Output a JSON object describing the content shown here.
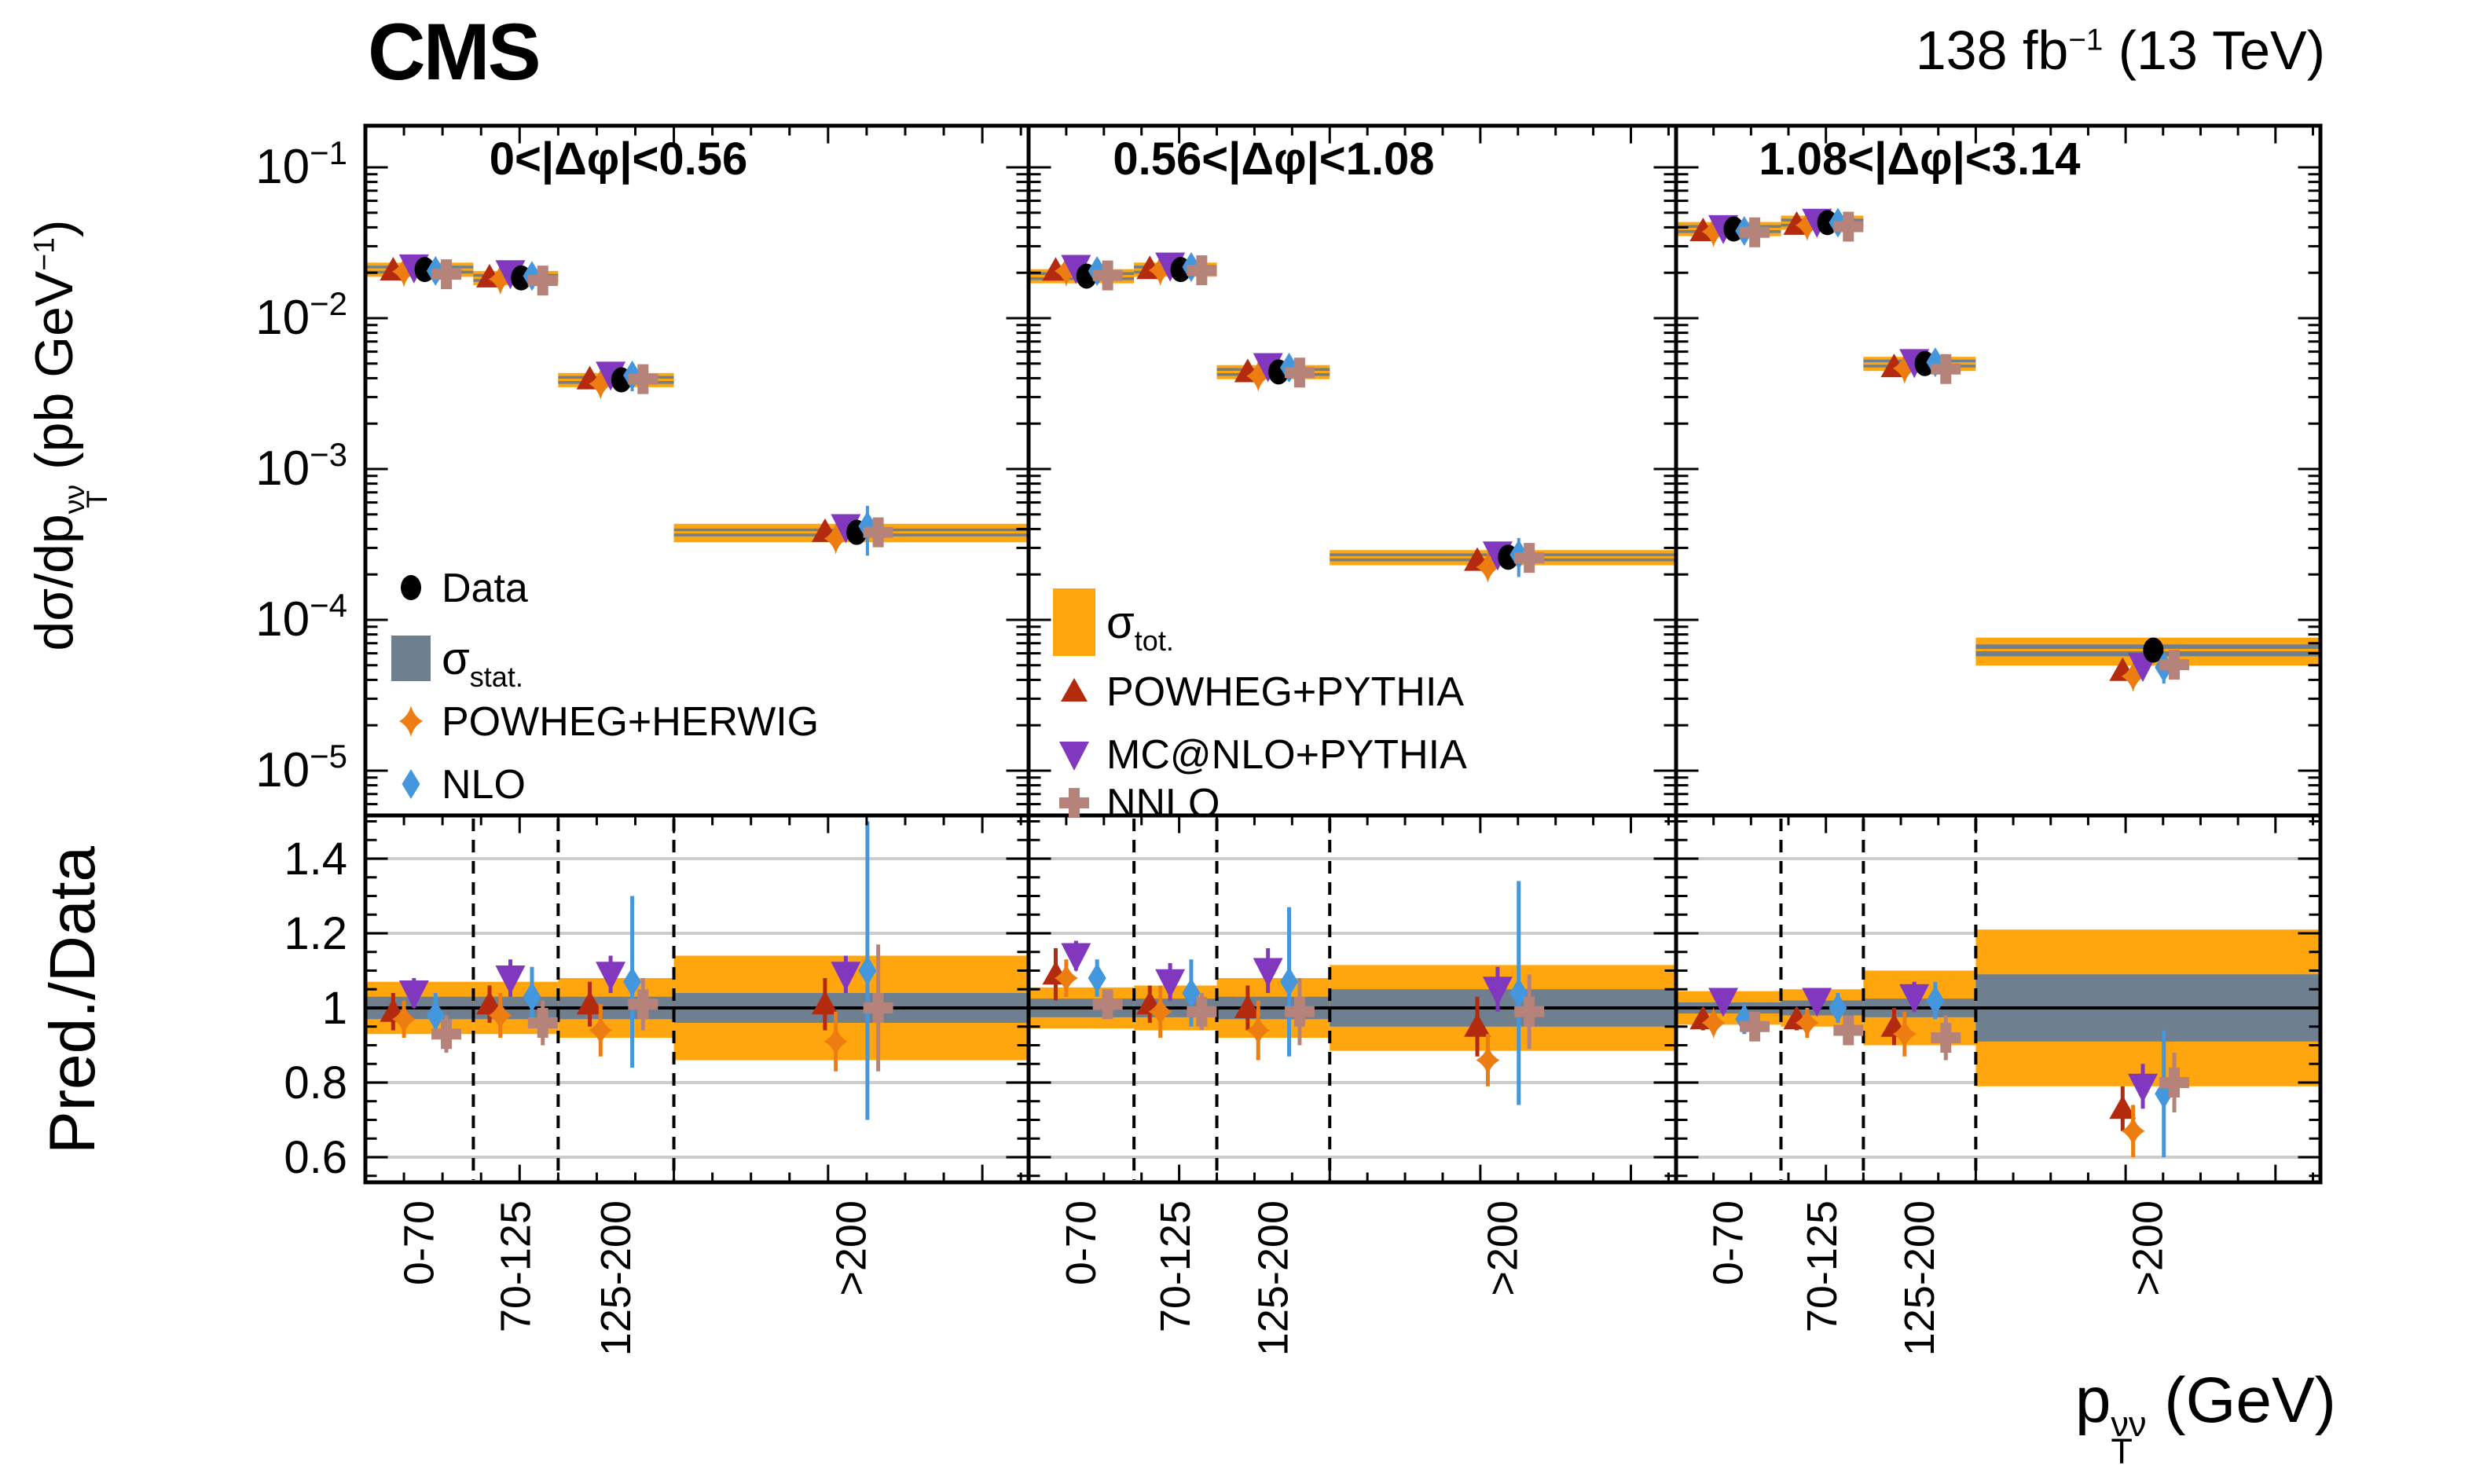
{
  "header": {
    "cms": "CMS",
    "lumi_prefix": "138 fb",
    "lumi_exp": "−1",
    "lumi_suffix": " (13 TeV)"
  },
  "axes": {
    "y_upper_label": {
      "prefix": "dσ/dp",
      "sup": "νν",
      "sub": "T",
      "mid": " (pb GeV",
      "exp": "−1",
      "suffix": ")"
    },
    "y_ratio_label": "Pred./Data",
    "x_label": {
      "prefix": "p",
      "sup": "νν",
      "sub": "T",
      "suffix": " (GeV)"
    },
    "y_upper_tick_exponents": [
      -1,
      -2,
      -3,
      -4,
      -5
    ],
    "y_ratio_ticks": [
      1.4,
      1.2,
      1,
      0.8,
      0.6
    ],
    "x_bin_labels": [
      "0-70",
      "70-125",
      "125-200",
      ">200"
    ]
  },
  "chart_data": {
    "type": "scatter",
    "x_unit": "GeV",
    "bin_edges": [
      0,
      70,
      125,
      200,
      430
    ],
    "bin_centers": [
      35,
      97.5,
      162.5,
      315
    ],
    "ylim_upper": [
      5.2e-06,
      0.19
    ],
    "ylim_ratio": [
      0.53,
      1.51
    ],
    "ratio_gridlines": [
      0.6,
      0.8,
      1.2,
      1.4
    ],
    "grid_color": "#cccccc",
    "bands": {
      "sigma_label": "σ",
      "stat_sub": "stat.",
      "tot_sub": "tot.",
      "stat_color": "#6E7F8F",
      "tot_color": "#FFA60F"
    },
    "series": [
      {
        "key": "powheg_pythia",
        "label": "POWHEG+PYTHIA",
        "marker": "triangle-up",
        "color": "#B32A0E",
        "offset_gev": -17
      },
      {
        "key": "powheg_herwig",
        "label": "POWHEG+HERWIG",
        "marker": "star4",
        "color": "#EE7D11",
        "offset_gev": -10
      },
      {
        "key": "mcatnlo_pythia",
        "label": "MC@NLO+PYTHIA",
        "marker": "triangle-down",
        "color": "#8238BE",
        "offset_gev": -3.5
      },
      {
        "key": "data",
        "label": "Data",
        "marker": "circle",
        "color": "#000000",
        "offset_gev": 3.5
      },
      {
        "key": "nlo",
        "label": "NLO",
        "marker": "diamond",
        "color": "#4497DC",
        "offset_gev": 10.5
      },
      {
        "key": "nnlo",
        "label": "NNLO",
        "marker": "plus",
        "color": "#B5837A",
        "offset_gev": 17.5
      }
    ],
    "legends": {
      "left": [
        "data",
        "stat_band",
        "powheg_herwig",
        "nlo"
      ],
      "middle": [
        "tot_band",
        "powheg_pythia",
        "mcatnlo_pythia",
        "nnlo"
      ]
    },
    "panels": [
      {
        "title": "0<|Δφ|<0.56",
        "data_xsec": [
          0.021,
          0.0185,
          0.0039,
          0.00038
        ],
        "stat_frac": [
          0.03,
          0.03,
          0.03,
          0.04
        ],
        "tot_frac": [
          0.07,
          0.07,
          0.08,
          0.14
        ],
        "ratios": {
          "powheg_pythia": [
            0.99,
            1.01,
            1.01,
            1.01
          ],
          "powheg_herwig": [
            0.97,
            0.98,
            0.94,
            0.91
          ],
          "mcatnlo_pythia": [
            1.04,
            1.08,
            1.09,
            1.09
          ],
          "nlo": [
            0.98,
            1.03,
            1.07,
            1.1
          ],
          "nnlo": [
            0.93,
            0.96,
            1.01,
            1.0
          ]
        },
        "ratio_err": {
          "powheg_pythia": [
            0.05,
            0.05,
            0.06,
            0.07
          ],
          "powheg_herwig": [
            0.05,
            0.06,
            0.07,
            0.08
          ],
          "mcatnlo_pythia": [
            0.04,
            0.05,
            0.05,
            0.05
          ],
          "nlo": [
            0.06,
            0.08,
            0.23,
            0.4
          ],
          "nnlo": [
            0.05,
            0.06,
            0.07,
            0.17
          ]
        }
      },
      {
        "title": "0.56<|Δφ|<1.08",
        "data_xsec": [
          0.019,
          0.021,
          0.0044,
          0.00026
        ],
        "stat_frac": [
          0.025,
          0.025,
          0.03,
          0.05
        ],
        "tot_frac": [
          0.055,
          0.06,
          0.08,
          0.115
        ],
        "ratios": {
          "powheg_pythia": [
            1.09,
            1.01,
            1.0,
            0.95
          ],
          "powheg_herwig": [
            1.08,
            0.99,
            0.94,
            0.86
          ],
          "mcatnlo_pythia": [
            1.14,
            1.07,
            1.1,
            1.05
          ],
          "nlo": [
            1.08,
            1.04,
            1.07,
            1.04
          ],
          "nnlo": [
            1.01,
            0.99,
            0.99,
            0.99
          ]
        },
        "ratio_err": {
          "powheg_pythia": [
            0.07,
            0.05,
            0.06,
            0.08
          ],
          "powheg_herwig": [
            0.05,
            0.07,
            0.08,
            0.07
          ],
          "mcatnlo_pythia": [
            0.04,
            0.05,
            0.06,
            0.06
          ],
          "nlo": [
            0.05,
            0.09,
            0.2,
            0.3
          ],
          "nnlo": [
            0.04,
            0.05,
            0.09,
            0.1
          ]
        }
      },
      {
        "title": "1.08<|Δφ|<3.14",
        "data_xsec": [
          0.039,
          0.043,
          0.005,
          6.3e-05
        ],
        "stat_frac": [
          0.015,
          0.02,
          0.025,
          0.09
        ],
        "tot_frac": [
          0.045,
          0.05,
          0.1,
          0.21
        ],
        "ratios": {
          "powheg_pythia": [
            0.97,
            0.97,
            0.95,
            0.73
          ],
          "powheg_herwig": [
            0.96,
            0.96,
            0.93,
            0.67
          ],
          "mcatnlo_pythia": [
            1.02,
            1.02,
            1.03,
            0.79
          ],
          "nlo": [
            0.97,
            1.0,
            1.02,
            0.77
          ],
          "nnlo": [
            0.95,
            0.94,
            0.92,
            0.8
          ]
        },
        "ratio_err": {
          "powheg_pythia": [
            0.03,
            0.03,
            0.05,
            0.06
          ],
          "powheg_herwig": [
            0.03,
            0.04,
            0.06,
            0.07
          ],
          "mcatnlo_pythia": [
            0.03,
            0.03,
            0.04,
            0.06
          ],
          "nlo": [
            0.04,
            0.04,
            0.05,
            0.17
          ],
          "nnlo": [
            0.03,
            0.04,
            0.06,
            0.08
          ]
        }
      }
    ]
  }
}
